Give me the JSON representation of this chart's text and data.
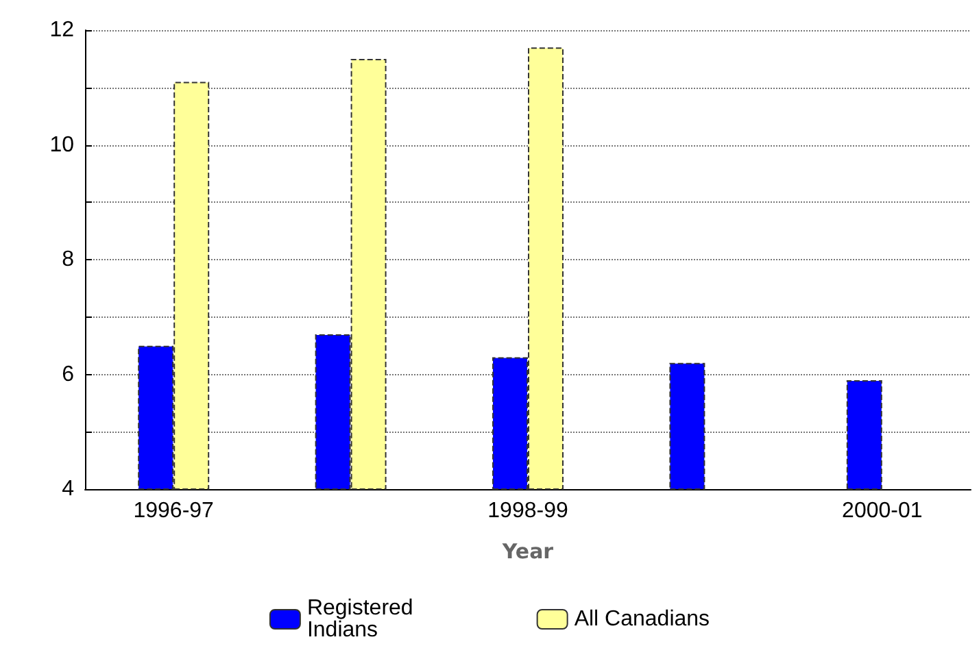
{
  "chart_data": {
    "type": "bar",
    "xlabel": "Year",
    "categories": [
      "1996-97",
      null,
      "1998-99",
      null,
      "2000-01"
    ],
    "series": [
      {
        "name": "Registered\nIndians",
        "color": "#0000ff",
        "values": [
          6.5,
          6.7,
          6.3,
          6.2,
          5.9
        ]
      },
      {
        "name": "All Canadians",
        "color": "#ffff99",
        "values": [
          11.1,
          11.5,
          11.7,
          null,
          null
        ]
      }
    ],
    "ylim": [
      4,
      12
    ],
    "yticks": [
      4,
      {
        "value": 5,
        "label": null
      },
      6,
      {
        "value": 7,
        "label": null
      },
      8,
      {
        "value": 9,
        "label": null
      },
      10,
      {
        "value": 11,
        "label": null
      },
      12
    ],
    "grid": "y",
    "legend": "bottom"
  }
}
